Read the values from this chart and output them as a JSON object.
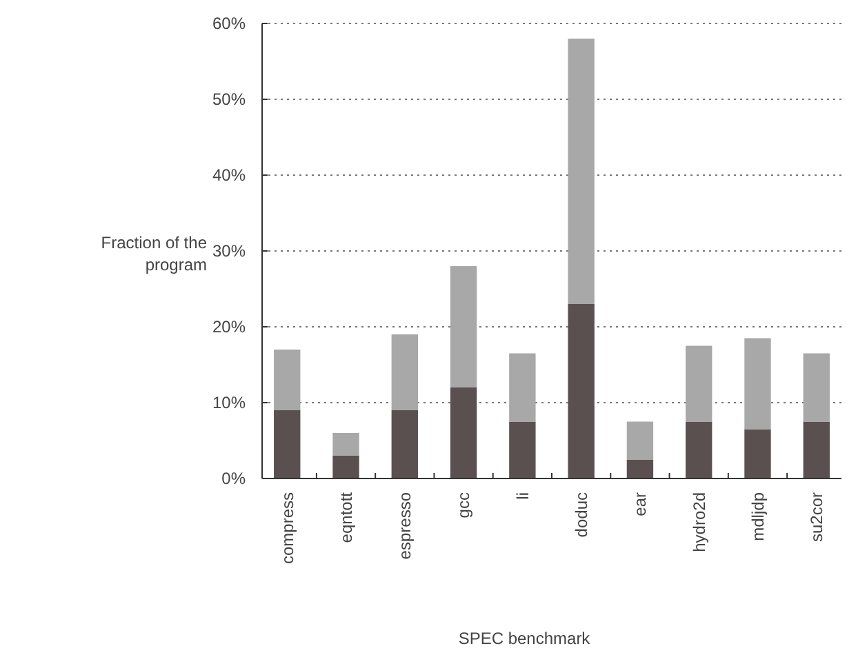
{
  "chart_data": {
    "type": "bar",
    "stacked": true,
    "xlabel": "SPEC benchmark",
    "ylabel": "Fraction of the program",
    "categories": [
      "compress",
      "eqntott",
      "espresso",
      "gcc",
      "li",
      "doduc",
      "ear",
      "hydro2d",
      "mdljdp",
      "su2cor"
    ],
    "series": [
      {
        "color": "#5a5050",
        "values": [
          9,
          3,
          9,
          12,
          7.5,
          23,
          2.5,
          7.5,
          6.5,
          7.5
        ]
      },
      {
        "color": "#a8a8a8",
        "values": [
          8,
          3,
          10,
          16,
          9,
          35,
          5,
          10,
          12,
          9
        ]
      }
    ],
    "ylim": [
      0,
      60
    ],
    "yticks": [
      {
        "value": 0,
        "label": "0%"
      },
      {
        "value": 10,
        "label": "10%"
      },
      {
        "value": 20,
        "label": "20%"
      },
      {
        "value": 30,
        "label": "30%"
      },
      {
        "value": 40,
        "label": "40%"
      },
      {
        "value": 50,
        "label": "50%"
      },
      {
        "value": 60,
        "label": "60%"
      }
    ],
    "grid": "y"
  }
}
